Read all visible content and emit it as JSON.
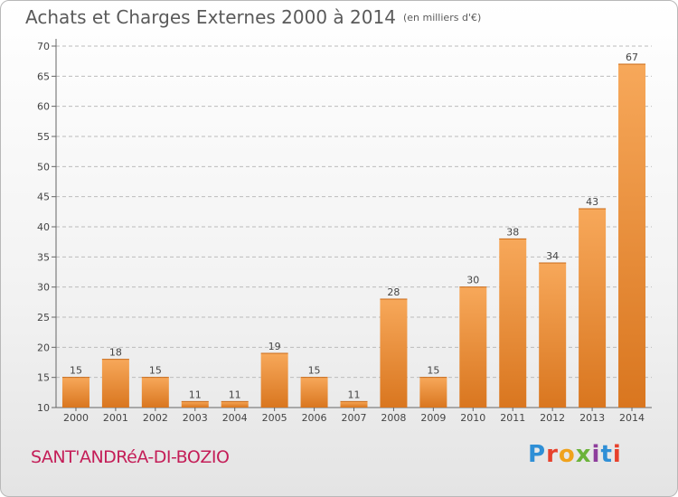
{
  "header": {
    "title": "Achats et Charges Externes 2000 à 2014",
    "unit": "(en milliers d'€)"
  },
  "footer": {
    "town": "SANT'ANDRéA-DI-BOZIO",
    "logo_text": "Proxiti"
  },
  "colors": {
    "bar_top": "#f7a85a",
    "bar_bottom": "#d9761f",
    "grid": "#bcbcbc",
    "town": "#c41e58"
  },
  "chart_data": {
    "type": "bar",
    "title": "Achats et Charges Externes 2000 à 2014",
    "subtitle": "(en milliers d'€)",
    "categories": [
      "2000",
      "2001",
      "2002",
      "2003",
      "2004",
      "2005",
      "2006",
      "2007",
      "2008",
      "2009",
      "2010",
      "2011",
      "2012",
      "2013",
      "2014"
    ],
    "values": [
      15,
      18,
      15,
      11,
      11,
      19,
      15,
      11,
      28,
      15,
      30,
      38,
      34,
      43,
      67
    ],
    "ylim": [
      10,
      70
    ],
    "yticks": [
      10,
      15,
      20,
      25,
      30,
      35,
      40,
      45,
      50,
      55,
      60,
      65,
      70
    ],
    "grid": true,
    "xlabel": "",
    "ylabel": ""
  }
}
